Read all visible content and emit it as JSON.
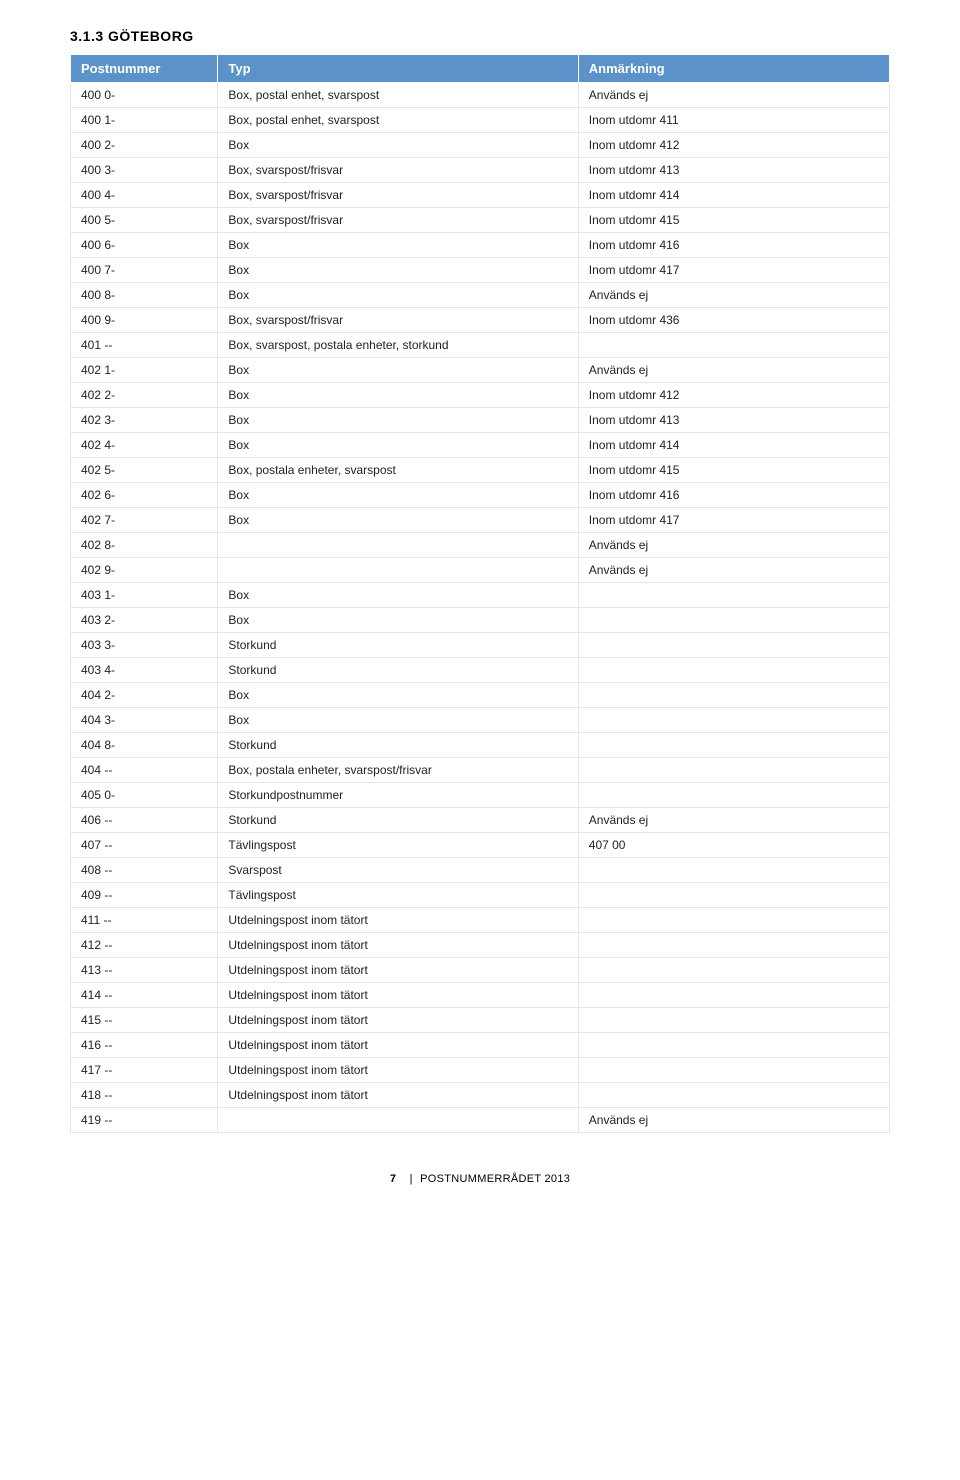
{
  "section_title": "3.1.3 GÖTEBORG",
  "colors": {
    "header_bg": "#5b92c9",
    "header_fg": "#ffffff",
    "row_border": "#e6e6e6",
    "text": "#222222",
    "page_bg": "#ffffff"
  },
  "typography": {
    "body_font": "Arial, Helvetica, sans-serif",
    "body_fontsize_pt": 9,
    "title_fontsize_pt": 11,
    "header_fontsize_pt": 10
  },
  "table": {
    "columns": [
      {
        "key": "postnummer",
        "label": "Postnummer",
        "width_pct": 18
      },
      {
        "key": "typ",
        "label": "Typ",
        "width_pct": 44
      },
      {
        "key": "anm",
        "label": "Anmärkning",
        "width_pct": 38
      }
    ],
    "rows": [
      {
        "postnummer": "400 0-",
        "typ": "Box, postal enhet, svarspost",
        "anm": "Används ej"
      },
      {
        "postnummer": "400 1-",
        "typ": "Box, postal enhet, svarspost",
        "anm": "Inom utdomr 411"
      },
      {
        "postnummer": "400 2-",
        "typ": "Box",
        "anm": "Inom utdomr 412"
      },
      {
        "postnummer": "400 3-",
        "typ": "Box, svarspost/frisvar",
        "anm": "Inom utdomr 413"
      },
      {
        "postnummer": "400 4-",
        "typ": "Box, svarspost/frisvar",
        "anm": "Inom utdomr 414"
      },
      {
        "postnummer": "400 5-",
        "typ": "Box, svarspost/frisvar",
        "anm": "Inom utdomr 415"
      },
      {
        "postnummer": "400 6-",
        "typ": "Box",
        "anm": "Inom utdomr 416"
      },
      {
        "postnummer": "400 7-",
        "typ": "Box",
        "anm": "Inom utdomr 417"
      },
      {
        "postnummer": "400 8-",
        "typ": "Box",
        "anm": "Används ej"
      },
      {
        "postnummer": "400 9-",
        "typ": "Box, svarspost/frisvar",
        "anm": "Inom utdomr 436"
      },
      {
        "postnummer": "401 --",
        "typ": "Box, svarspost, postala enheter, storkund",
        "anm": ""
      },
      {
        "postnummer": "402 1-",
        "typ": "Box",
        "anm": "Används ej"
      },
      {
        "postnummer": "402 2-",
        "typ": "Box",
        "anm": "Inom utdomr 412"
      },
      {
        "postnummer": "402 3-",
        "typ": "Box",
        "anm": "Inom utdomr 413"
      },
      {
        "postnummer": "402 4-",
        "typ": "Box",
        "anm": "Inom utdomr 414"
      },
      {
        "postnummer": "402 5-",
        "typ": "Box, postala enheter, svarspost",
        "anm": "Inom utdomr 415"
      },
      {
        "postnummer": "402 6-",
        "typ": "Box",
        "anm": "Inom utdomr 416"
      },
      {
        "postnummer": "402 7-",
        "typ": "Box",
        "anm": "Inom utdomr 417"
      },
      {
        "postnummer": "402 8-",
        "typ": "",
        "anm": "Används ej"
      },
      {
        "postnummer": "402 9-",
        "typ": "",
        "anm": "Används ej"
      },
      {
        "postnummer": "403 1-",
        "typ": "Box",
        "anm": ""
      },
      {
        "postnummer": "403 2-",
        "typ": "Box",
        "anm": ""
      },
      {
        "postnummer": "403 3-",
        "typ": "Storkund",
        "anm": ""
      },
      {
        "postnummer": "403 4-",
        "typ": "Storkund",
        "anm": ""
      },
      {
        "postnummer": "404 2-",
        "typ": "Box",
        "anm": ""
      },
      {
        "postnummer": "404 3-",
        "typ": "Box",
        "anm": ""
      },
      {
        "postnummer": "404 8-",
        "typ": "Storkund",
        "anm": ""
      },
      {
        "postnummer": "404 --",
        "typ": "Box, postala enheter, svarspost/frisvar",
        "anm": ""
      },
      {
        "postnummer": "405 0-",
        "typ": "Storkundpostnummer",
        "anm": ""
      },
      {
        "postnummer": "406 --",
        "typ": "Storkund",
        "anm": "Används ej"
      },
      {
        "postnummer": "407 --",
        "typ": "Tävlingspost",
        "anm": "407 00"
      },
      {
        "postnummer": "408 --",
        "typ": "Svarspost",
        "anm": ""
      },
      {
        "postnummer": "409 --",
        "typ": "Tävlingspost",
        "anm": ""
      },
      {
        "postnummer": "411 --",
        "typ": "Utdelningspost inom tätort",
        "anm": ""
      },
      {
        "postnummer": "412 --",
        "typ": "Utdelningspost inom tätort",
        "anm": ""
      },
      {
        "postnummer": "413 --",
        "typ": "Utdelningspost inom tätort",
        "anm": ""
      },
      {
        "postnummer": "414 --",
        "typ": "Utdelningspost inom tätort",
        "anm": ""
      },
      {
        "postnummer": "415 --",
        "typ": "Utdelningspost inom tätort",
        "anm": ""
      },
      {
        "postnummer": "416 --",
        "typ": "Utdelningspost inom tätort",
        "anm": ""
      },
      {
        "postnummer": "417 --",
        "typ": "Utdelningspost inom tätort",
        "anm": ""
      },
      {
        "postnummer": "418 --",
        "typ": "Utdelningspost inom tätort",
        "anm": ""
      },
      {
        "postnummer": "419 --",
        "typ": "",
        "anm": "Används ej"
      }
    ]
  },
  "footer": {
    "page_number": "7",
    "separator": "|",
    "doc_title": "POSTNUMMERRÅDET 2013"
  }
}
